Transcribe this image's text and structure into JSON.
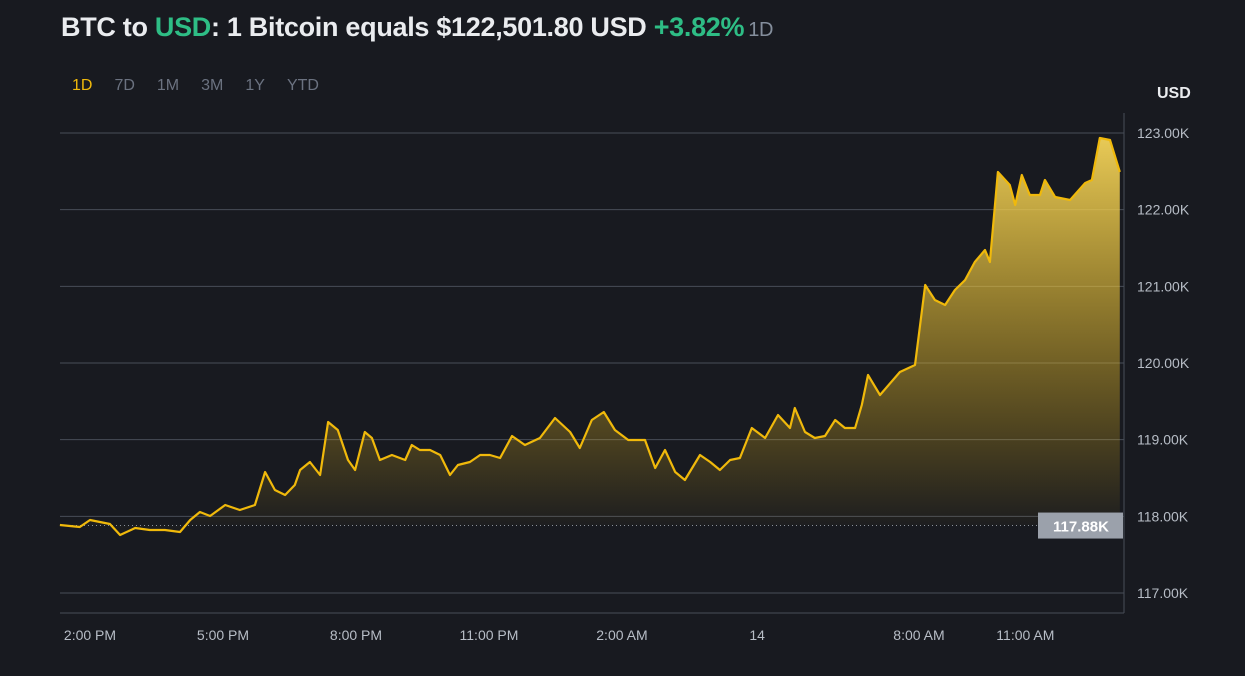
{
  "header": {
    "pair_base": "BTC to ",
    "pair_quote": "USD",
    "statement": ": 1 Bitcoin equals $122,501.80 USD ",
    "change": "+3.82%",
    "period": "1D"
  },
  "tabs": [
    {
      "label": "1D",
      "active": true
    },
    {
      "label": "7D",
      "active": false
    },
    {
      "label": "1M",
      "active": false
    },
    {
      "label": "3M",
      "active": false
    },
    {
      "label": "1Y",
      "active": false
    },
    {
      "label": "YTD",
      "active": false
    }
  ],
  "colors": {
    "line": "#f0b90b",
    "grid": "#474d57",
    "positive": "#2ebd85"
  },
  "chart_data": {
    "type": "area",
    "title": "BTC to USD",
    "ylabel": "USD",
    "ylim": [
      116750,
      123000
    ],
    "yticks": [
      117000,
      118000,
      119000,
      120000,
      121000,
      122000,
      123000
    ],
    "ytick_labels": [
      "117.00K",
      "118.00K",
      "119.00K",
      "120.00K",
      "121.00K",
      "122.00K",
      "123.00K"
    ],
    "x_unit": "hours since 2:00 PM",
    "xticks": [
      0,
      3,
      6,
      9,
      12,
      15.05,
      18.7,
      21.1
    ],
    "xtick_labels": [
      "2:00 PM",
      "5:00 PM",
      "8:00 PM",
      "11:00 PM",
      "2:00 AM",
      "14",
      "8:00 AM",
      "11:00 AM"
    ],
    "reference_value": 117880,
    "reference_label": "117.88K",
    "grid": true,
    "points": [
      [
        -0.68,
        117887
      ],
      [
        -0.23,
        117861
      ],
      [
        0,
        117952
      ],
      [
        0.45,
        117900
      ],
      [
        0.68,
        117757
      ],
      [
        1.02,
        117848
      ],
      [
        1.35,
        117822
      ],
      [
        1.69,
        117822
      ],
      [
        2.03,
        117796
      ],
      [
        2.26,
        117952
      ],
      [
        2.48,
        118057
      ],
      [
        2.71,
        118005
      ],
      [
        3.05,
        118148
      ],
      [
        3.38,
        118083
      ],
      [
        3.72,
        118148
      ],
      [
        3.95,
        118578
      ],
      [
        4.17,
        118344
      ],
      [
        4.4,
        118278
      ],
      [
        4.62,
        118409
      ],
      [
        4.74,
        118604
      ],
      [
        4.96,
        118709
      ],
      [
        5.19,
        118539
      ],
      [
        5.37,
        119231
      ],
      [
        5.59,
        119126
      ],
      [
        5.82,
        118735
      ],
      [
        5.98,
        118604
      ],
      [
        6.2,
        119100
      ],
      [
        6.36,
        119022
      ],
      [
        6.54,
        118735
      ],
      [
        6.81,
        118800
      ],
      [
        7.11,
        118735
      ],
      [
        7.26,
        118931
      ],
      [
        7.44,
        118865
      ],
      [
        7.67,
        118865
      ],
      [
        7.9,
        118800
      ],
      [
        8.12,
        118539
      ],
      [
        8.3,
        118670
      ],
      [
        8.57,
        118709
      ],
      [
        8.8,
        118800
      ],
      [
        9.02,
        118800
      ],
      [
        9.25,
        118761
      ],
      [
        9.52,
        119048
      ],
      [
        9.81,
        118931
      ],
      [
        10.15,
        119022
      ],
      [
        10.49,
        119283
      ],
      [
        10.83,
        119100
      ],
      [
        11.05,
        118891
      ],
      [
        11.32,
        119257
      ],
      [
        11.59,
        119361
      ],
      [
        11.84,
        119126
      ],
      [
        12.14,
        118996
      ],
      [
        12.52,
        118996
      ],
      [
        12.75,
        118631
      ],
      [
        12.97,
        118865
      ],
      [
        13.2,
        118578
      ],
      [
        13.42,
        118474
      ],
      [
        13.76,
        118800
      ],
      [
        13.99,
        118709
      ],
      [
        14.21,
        118604
      ],
      [
        14.44,
        118735
      ],
      [
        14.66,
        118761
      ],
      [
        14.93,
        119152
      ],
      [
        15.23,
        119022
      ],
      [
        15.52,
        119322
      ],
      [
        15.79,
        119152
      ],
      [
        15.9,
        119413
      ],
      [
        16.13,
        119100
      ],
      [
        16.35,
        119022
      ],
      [
        16.58,
        119048
      ],
      [
        16.81,
        119257
      ],
      [
        17.03,
        119152
      ],
      [
        17.26,
        119152
      ],
      [
        17.41,
        119452
      ],
      [
        17.55,
        119844
      ],
      [
        17.82,
        119583
      ],
      [
        18.27,
        119883
      ],
      [
        18.61,
        119974
      ],
      [
        18.84,
        121017
      ],
      [
        19.06,
        120822
      ],
      [
        19.29,
        120757
      ],
      [
        19.51,
        120952
      ],
      [
        19.74,
        121083
      ],
      [
        19.96,
        121317
      ],
      [
        20.19,
        121474
      ],
      [
        20.3,
        121317
      ],
      [
        20.48,
        122491
      ],
      [
        20.75,
        122322
      ],
      [
        20.87,
        122061
      ],
      [
        21.02,
        122452
      ],
      [
        21.2,
        122191
      ],
      [
        21.43,
        122191
      ],
      [
        21.54,
        122387
      ],
      [
        21.77,
        122165
      ],
      [
        22.11,
        122126
      ],
      [
        22.45,
        122348
      ],
      [
        22.6,
        122387
      ],
      [
        22.78,
        122935
      ],
      [
        23.01,
        122909
      ],
      [
        23.23,
        122491
      ]
    ]
  }
}
